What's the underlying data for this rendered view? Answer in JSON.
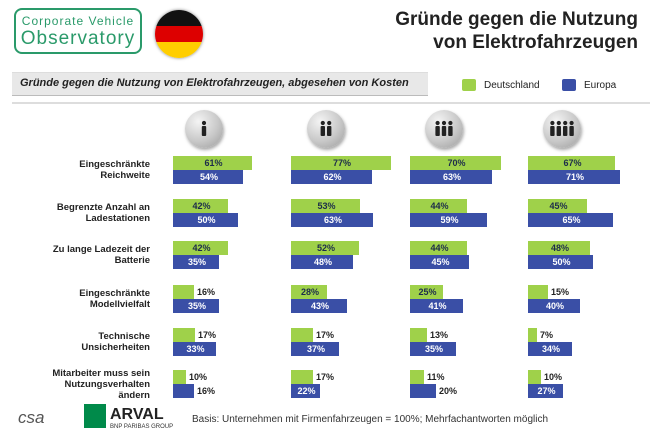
{
  "header": {
    "logo_line1": "Corporate Vehicle",
    "logo_line2": "Observatory",
    "title_line1": "Gründe gegen die Nutzung",
    "title_line2": "von Elektrofahrzeugen"
  },
  "subtitle": "Gründe gegen die Nutzung von Elektrofahrzeugen, abgesehen von Kosten",
  "legend": [
    {
      "label": "Deutschland",
      "color": "#9fd14a"
    },
    {
      "label": "Europa",
      "color": "#3a4fa6"
    }
  ],
  "icons": [
    "person-1-icon",
    "person-2-icon",
    "person-3-icon",
    "person-4-icon"
  ],
  "footer": {
    "text": "Basis: Unternehmen mit Firmenfahrzeugen = 100%; Mehrfachantworten möglich",
    "logo_csa": "csa",
    "logo_arval": "ARVAL",
    "logo_bnp": "BNP PARIBAS GROUP"
  },
  "chart_data": {
    "type": "bar",
    "orientation": "horizontal",
    "unit": "%",
    "categories": [
      "Eingeschränkte Reichweite",
      "Begrenzte Anzahl an Ladestationen",
      "Zu lange Ladezeit der Batterie",
      "Eingeschränkte Modellvielfalt",
      "Technische Unsicherheiten",
      "Mitarbeiter muss sein Nutzungsverhalten ändern"
    ],
    "category_lines": [
      [
        "Eingeschränkte",
        "Reichweite"
      ],
      [
        "Begrenzte Anzahl an",
        "Ladestationen"
      ],
      [
        "Zu lange Ladezeit der",
        "Batterie"
      ],
      [
        "Eingeschränkte",
        "Modellvielfalt"
      ],
      [
        "Technische",
        "Unsicherheiten"
      ],
      [
        "Mitarbeiter muss sein",
        "Nutzungsverhalten",
        "ändern"
      ]
    ],
    "panels": [
      {
        "deutschland": [
          61,
          42,
          42,
          16,
          17,
          10
        ],
        "europa": [
          54,
          50,
          35,
          35,
          33,
          16
        ]
      },
      {
        "deutschland": [
          77,
          53,
          52,
          28,
          17,
          17
        ],
        "europa": [
          62,
          63,
          48,
          43,
          37,
          22
        ]
      },
      {
        "deutschland": [
          70,
          44,
          44,
          25,
          13,
          11
        ],
        "europa": [
          63,
          59,
          45,
          41,
          35,
          20
        ]
      },
      {
        "deutschland": [
          67,
          45,
          48,
          15,
          7,
          10
        ],
        "europa": [
          71,
          65,
          50,
          40,
          34,
          27
        ]
      }
    ],
    "colors": {
      "deutschland": "#9fd14a",
      "europa": "#3a4fa6"
    }
  }
}
